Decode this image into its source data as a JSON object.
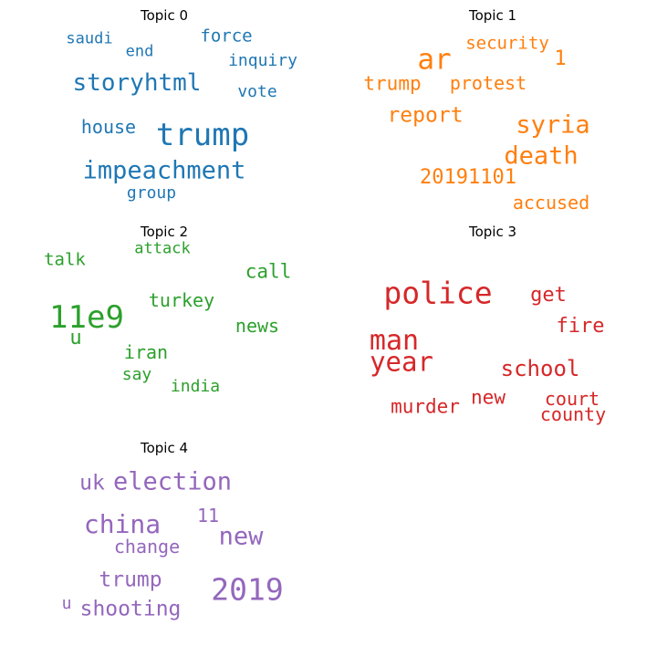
{
  "topics": [
    {
      "title": "Topic 0",
      "color": "#1f77b4",
      "words": [
        {
          "text": "saudi"
        },
        {
          "text": "end"
        },
        {
          "text": "force"
        },
        {
          "text": "inquiry"
        },
        {
          "text": "storyhtml"
        },
        {
          "text": "vote"
        },
        {
          "text": "house"
        },
        {
          "text": "trump"
        },
        {
          "text": "impeachment"
        },
        {
          "text": "group"
        }
      ]
    },
    {
      "title": "Topic 1",
      "color": "#ff7f0e",
      "words": [
        {
          "text": "security"
        },
        {
          "text": "ar"
        },
        {
          "text": "1"
        },
        {
          "text": "trump"
        },
        {
          "text": "protest"
        },
        {
          "text": "report"
        },
        {
          "text": "syria"
        },
        {
          "text": "death"
        },
        {
          "text": "20191101"
        },
        {
          "text": "accused"
        }
      ]
    },
    {
      "title": "Topic 2",
      "color": "#2ca02c",
      "words": [
        {
          "text": "attack"
        },
        {
          "text": "talk"
        },
        {
          "text": "call"
        },
        {
          "text": "11e9"
        },
        {
          "text": "turkey"
        },
        {
          "text": "news"
        },
        {
          "text": "u"
        },
        {
          "text": "iran"
        },
        {
          "text": "say"
        },
        {
          "text": "india"
        }
      ]
    },
    {
      "title": "Topic 3",
      "color": "#d62728",
      "words": [
        {
          "text": "police"
        },
        {
          "text": "get"
        },
        {
          "text": "man"
        },
        {
          "text": "fire"
        },
        {
          "text": "year"
        },
        {
          "text": "school"
        },
        {
          "text": "new"
        },
        {
          "text": "murder"
        },
        {
          "text": "court"
        },
        {
          "text": "county"
        }
      ]
    },
    {
      "title": "Topic 4",
      "color": "#9467bd",
      "words": [
        {
          "text": "uk"
        },
        {
          "text": "election"
        },
        {
          "text": "11"
        },
        {
          "text": "china"
        },
        {
          "text": "new"
        },
        {
          "text": "change"
        },
        {
          "text": "trump"
        },
        {
          "text": "2019"
        },
        {
          "text": "u"
        },
        {
          "text": "shooting"
        }
      ]
    }
  ]
}
